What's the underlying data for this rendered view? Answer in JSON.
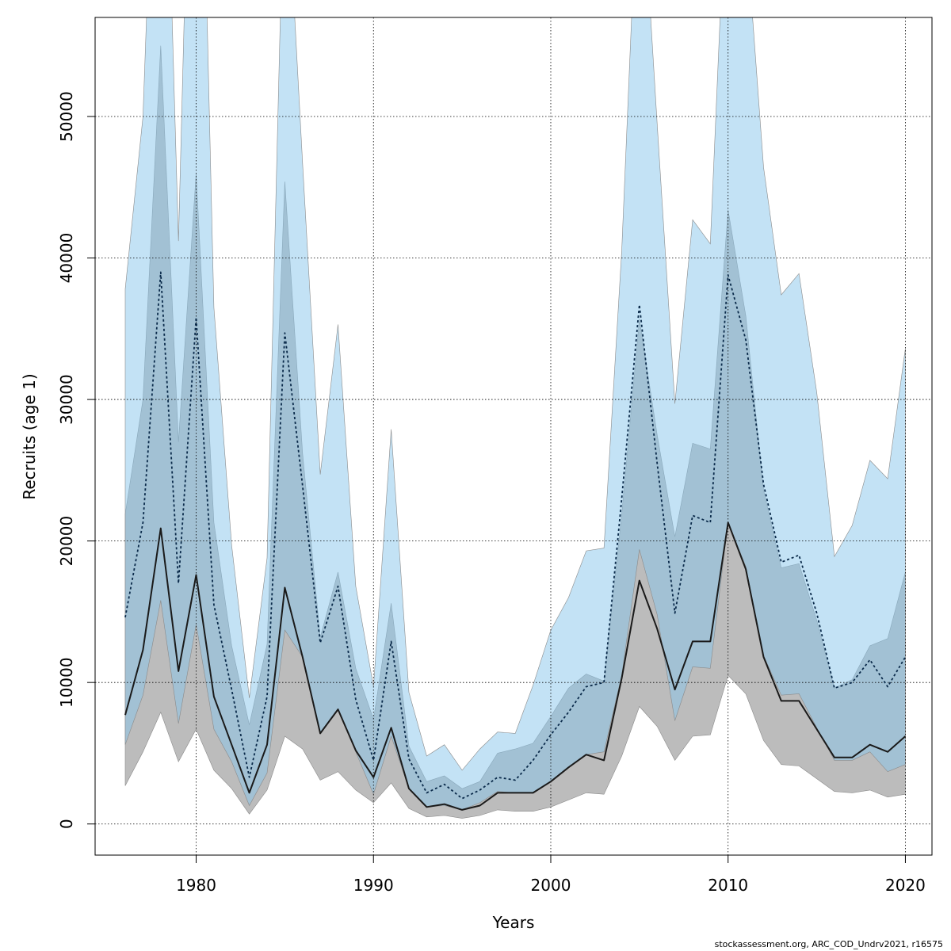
{
  "chart_data": {
    "type": "area",
    "xlabel": "Years",
    "ylabel": "Recruits (age 1)",
    "xlim": [
      1974.3,
      2021.5
    ],
    "ylim": [
      -2200,
      57000
    ],
    "x_ticks": [
      1980,
      1990,
      2000,
      2010,
      2020
    ],
    "y_ticks": [
      0,
      10000,
      20000,
      30000,
      40000,
      50000
    ],
    "grid": true,
    "years": [
      1976,
      1977,
      1978,
      1979,
      1980,
      1981,
      1982,
      1983,
      1984,
      1985,
      1986,
      1987,
      1988,
      1989,
      1990,
      1991,
      1992,
      1993,
      1994,
      1995,
      1996,
      1997,
      1998,
      1999,
      2000,
      2001,
      2002,
      2003,
      2004,
      2005,
      2006,
      2007,
      2008,
      2009,
      2010,
      2011,
      2012,
      2013,
      2014,
      2015,
      2016,
      2017,
      2018,
      2019,
      2020
    ],
    "series": [
      {
        "name": "Recruits (estimate, solid line)",
        "color": "#1a1a1a",
        "values": [
          7700,
          12300,
          20900,
          10800,
          17600,
          9000,
          5600,
          2200,
          5600,
          16700,
          11800,
          6400,
          8100,
          5200,
          3300,
          6800,
          2500,
          1200,
          1400,
          1000,
          1300,
          2200,
          2200,
          2200,
          3000,
          4000,
          4900,
          4500,
          10300,
          17200,
          13800,
          9500,
          12900,
          12900,
          21300,
          18000,
          11800,
          8700,
          8700,
          6700,
          4700,
          4700,
          5600,
          5100,
          6200
        ],
        "lower": [
          2700,
          5100,
          7900,
          4400,
          6700,
          3800,
          2500,
          700,
          2400,
          6200,
          5300,
          3100,
          3700,
          2400,
          1500,
          2900,
          1100,
          500,
          600,
          400,
          600,
          1000,
          900,
          900,
          1200,
          1700,
          2200,
          2100,
          4800,
          8300,
          6900,
          4500,
          6200,
          6300,
          10500,
          9200,
          5900,
          4200,
          4100,
          3200,
          2300,
          2200,
          2400,
          1900,
          2100
        ],
        "upper": [
          21900,
          30000,
          55000,
          27000,
          46000,
          21300,
          12600,
          7000,
          12700,
          45400,
          26200,
          13200,
          17800,
          11000,
          7400,
          15600,
          5500,
          3000,
          3400,
          2500,
          3000,
          5000,
          5300,
          5700,
          7600,
          9600,
          10600,
          10100,
          21900,
          35700,
          27500,
          20300,
          26900,
          26500,
          43400,
          35900,
          23600,
          18100,
          18400,
          14400,
          9600,
          10200,
          12600,
          13100,
          17800
        ],
        "band_color": "#bcbcbc"
      },
      {
        "name": "Recruits (alternative run, dotted line)",
        "color": "#0a2a4a",
        "values": [
          14600,
          21300,
          39000,
          17000,
          35800,
          15500,
          9500,
          3300,
          9000,
          34700,
          23900,
          12800,
          16800,
          8800,
          4500,
          12900,
          4600,
          2200,
          2800,
          1800,
          2400,
          3300,
          3100,
          4500,
          6300,
          7900,
          9700,
          10000,
          23000,
          36700,
          25500,
          14900,
          21800,
          21300,
          38800,
          34200,
          24000,
          18500,
          19000,
          14900,
          9600,
          10000,
          11600,
          9700,
          11800
        ],
        "lower": [
          5600,
          9100,
          15800,
          7100,
          14100,
          6700,
          4400,
          1300,
          3600,
          13700,
          11800,
          6400,
          8100,
          5100,
          2100,
          6200,
          2500,
          1200,
          1300,
          1000,
          1500,
          2300,
          2200,
          2200,
          3000,
          4000,
          4900,
          5100,
          10500,
          19400,
          14800,
          7300,
          11100,
          11000,
          21300,
          18200,
          11900,
          9100,
          9200,
          6800,
          4500,
          4500,
          5100,
          3700,
          4200
        ],
        "upper": [
          37800,
          50000,
          85000,
          41200,
          90000,
          36500,
          19700,
          8900,
          18800,
          70000,
          46700,
          24700,
          35300,
          16800,
          9700,
          27900,
          9300,
          4800,
          5600,
          3800,
          5300,
          6500,
          6400,
          9800,
          13700,
          16000,
          19300,
          19500,
          40500,
          70000,
          49500,
          29700,
          42700,
          41000,
          70000,
          63500,
          46400,
          37400,
          38900,
          30500,
          18900,
          21100,
          25700,
          24400,
          33600
        ],
        "band_color": "#87c5ec"
      }
    ]
  },
  "footer_text": "stockassessment.org, ARC_COD_Undrv2021, r16575"
}
